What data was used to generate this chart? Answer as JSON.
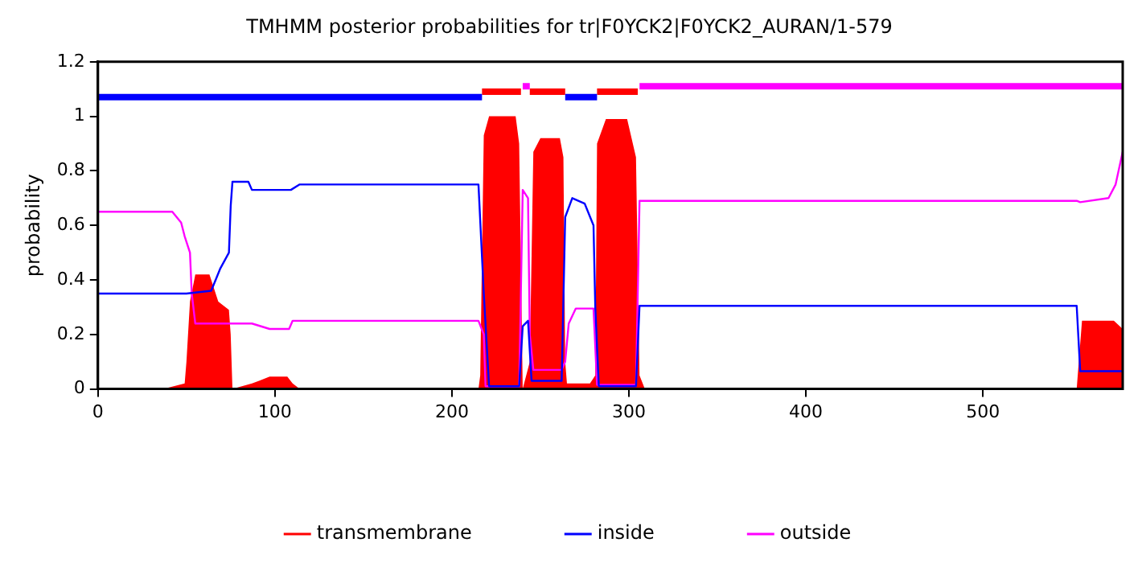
{
  "chart_data": {
    "type": "line",
    "title": "TMHMM posterior probabilities for tr|F0YCK2|F0YCK2_AURAN/1-579",
    "ylabel": "probability",
    "xlim": [
      0,
      579
    ],
    "xticks": [
      0,
      100,
      200,
      300,
      400,
      500
    ],
    "ylim": [
      0,
      1.2
    ],
    "yticks": [
      0,
      0.2,
      0.4,
      0.6,
      0.8,
      1,
      1.2
    ],
    "legend": "bottom",
    "marker": "none",
    "line_style": "solid",
    "grid": false,
    "series": [
      {
        "name": "transmembrane",
        "type": "area",
        "color": "#ff0000",
        "x": [
          0,
          37,
          49,
          50,
          52,
          55,
          63,
          68,
          74,
          75,
          76,
          87,
          91,
          97,
          107,
          110,
          114,
          215,
          216,
          218,
          221,
          236,
          238,
          240,
          244,
          246,
          250,
          261,
          263,
          264,
          265,
          278,
          281,
          282,
          287,
          299,
          304,
          306,
          309,
          553,
          556,
          574,
          579
        ],
        "values": [
          0,
          0,
          0.02,
          0.1,
          0.32,
          0.42,
          0.42,
          0.32,
          0.29,
          0.2,
          0,
          0.02,
          0.03,
          0.045,
          0.045,
          0.02,
          0,
          0,
          0.05,
          0.93,
          1,
          1,
          0.9,
          0,
          0.1,
          0.87,
          0.92,
          0.92,
          0.85,
          0.1,
          0.02,
          0.02,
          0.05,
          0.9,
          0.99,
          0.99,
          0.85,
          0.05,
          0,
          0,
          0.25,
          0.25,
          0.22
        ]
      },
      {
        "name": "inside",
        "color": "#0000ff",
        "x": [
          0,
          50,
          64,
          69,
          74,
          75,
          76,
          85,
          87,
          109,
          114,
          215,
          218,
          221,
          238,
          240,
          243,
          245,
          262,
          264,
          268,
          275,
          280,
          281,
          283,
          304,
          306,
          553,
          555,
          579
        ],
        "values": [
          0.35,
          0.35,
          0.36,
          0.44,
          0.5,
          0.67,
          0.76,
          0.76,
          0.73,
          0.73,
          0.75,
          0.75,
          0.35,
          0.01,
          0.01,
          0.23,
          0.25,
          0.03,
          0.03,
          0.63,
          0.7,
          0.68,
          0.6,
          0.3,
          0.01,
          0.01,
          0.305,
          0.305,
          0.065,
          0.065
        ]
      },
      {
        "name": "outside",
        "color": "#ff00ff",
        "x": [
          0,
          42,
          47,
          49,
          52,
          53,
          55,
          87,
          97,
          108,
          110,
          215,
          218,
          219,
          238,
          240,
          243,
          244,
          246,
          262,
          264,
          266,
          270,
          280,
          282,
          304,
          306,
          553,
          555,
          571,
          575,
          579
        ],
        "values": [
          0.65,
          0.65,
          0.61,
          0.56,
          0.5,
          0.35,
          0.24,
          0.24,
          0.22,
          0.22,
          0.25,
          0.25,
          0.2,
          0.01,
          0.01,
          0.73,
          0.7,
          0.2,
          0.07,
          0.07,
          0.1,
          0.24,
          0.295,
          0.295,
          0.015,
          0.015,
          0.69,
          0.69,
          0.685,
          0.7,
          0.75,
          0.87
        ]
      },
      {
        "color": "#ff00ff",
        "x": [
          240,
          244
        ],
        "values": [
          1.11,
          1.11
        ]
      },
      {
        "color": "#ff00ff",
        "x": [
          306,
          579
        ],
        "values": [
          1.11,
          1.11
        ]
      },
      {
        "color": "#0000ff",
        "x": [
          0,
          217
        ],
        "values": [
          1.07,
          1.07
        ]
      },
      {
        "color": "#0000ff",
        "x": [
          264,
          282
        ],
        "values": [
          1.07,
          1.07
        ]
      },
      {
        "color": "#ff0000",
        "x": [
          217,
          239
        ],
        "values": [
          1.09,
          1.09
        ]
      },
      {
        "color": "#ff0000",
        "x": [
          244,
          264
        ],
        "values": [
          1.09,
          1.09
        ]
      },
      {
        "color": "#ff0000",
        "x": [
          282,
          305
        ],
        "values": [
          1.09,
          1.09
        ]
      }
    ]
  }
}
